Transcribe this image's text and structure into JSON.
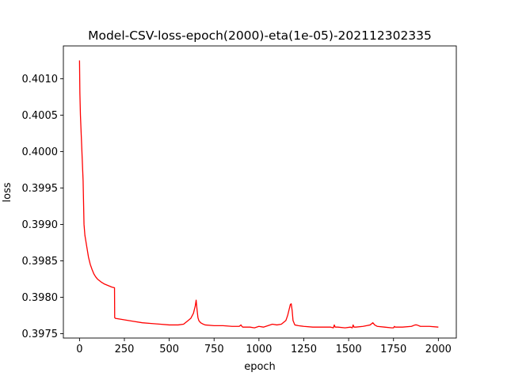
{
  "chart_data": {
    "type": "line",
    "title": "Model-CSV-loss-epoch(2000)-eta(1e-05)-202112302335",
    "xlabel": "epoch",
    "ylabel": "loss",
    "xlim": [
      -90,
      2100
    ],
    "ylim": [
      0.39744,
      0.40145
    ],
    "xticks": [
      0,
      250,
      500,
      750,
      1000,
      1250,
      1500,
      1750,
      2000
    ],
    "xtick_labels": [
      "0",
      "250",
      "500",
      "750",
      "1000",
      "1250",
      "1500",
      "1750",
      "2000"
    ],
    "yticks": [
      0.3975,
      0.398,
      0.3985,
      0.399,
      0.3995,
      0.4,
      0.4005,
      0.401
    ],
    "ytick_labels": [
      "0.3975",
      "0.3980",
      "0.3985",
      "0.3990",
      "0.3995",
      "0.4000",
      "0.4005",
      "0.4010"
    ],
    "grid": false,
    "legend": false,
    "series": [
      {
        "color": "#ff0000",
        "x": [
          0,
          2,
          5,
          10,
          15,
          20,
          25,
          30,
          40,
          50,
          60,
          70,
          80,
          90,
          100,
          120,
          140,
          160,
          180,
          195,
          196,
          200,
          250,
          300,
          350,
          400,
          450,
          500,
          550,
          580,
          600,
          620,
          635,
          645,
          650,
          655,
          660,
          665,
          675,
          690,
          700,
          750,
          800,
          850,
          890,
          900,
          905,
          910,
          920,
          950,
          975,
          1000,
          1025,
          1050,
          1075,
          1100,
          1125,
          1150,
          1160,
          1170,
          1175,
          1180,
          1185,
          1190,
          1200,
          1220,
          1250,
          1300,
          1350,
          1400,
          1415,
          1420,
          1425,
          1440,
          1480,
          1510,
          1520,
          1525,
          1530,
          1540,
          1580,
          1600,
          1620,
          1635,
          1645,
          1660,
          1700,
          1740,
          1750,
          1755,
          1760,
          1800,
          1850,
          1870,
          1880,
          1900,
          1950,
          2000
        ],
        "y": [
          0.40125,
          0.4008,
          0.4005,
          0.4002,
          0.3999,
          0.3996,
          0.399,
          0.39885,
          0.3987,
          0.39855,
          0.39845,
          0.39838,
          0.39832,
          0.39828,
          0.39825,
          0.39821,
          0.39818,
          0.39816,
          0.39814,
          0.39813,
          0.39772,
          0.39771,
          0.39769,
          0.39767,
          0.39765,
          0.39764,
          0.39763,
          0.39762,
          0.39762,
          0.39763,
          0.39767,
          0.39771,
          0.39778,
          0.39788,
          0.39796,
          0.39783,
          0.39772,
          0.39768,
          0.39765,
          0.39763,
          0.39762,
          0.39761,
          0.39761,
          0.3976,
          0.3976,
          0.39762,
          0.3976,
          0.39759,
          0.39759,
          0.39759,
          0.39758,
          0.3976,
          0.39759,
          0.39761,
          0.39763,
          0.39762,
          0.39763,
          0.39768,
          0.39775,
          0.39785,
          0.3979,
          0.39791,
          0.39782,
          0.39768,
          0.39762,
          0.39761,
          0.3976,
          0.39759,
          0.39759,
          0.39759,
          0.39758,
          0.39762,
          0.39759,
          0.39759,
          0.39758,
          0.39759,
          0.39758,
          0.39762,
          0.39759,
          0.39759,
          0.3976,
          0.39761,
          0.39762,
          0.39765,
          0.39762,
          0.3976,
          0.39759,
          0.39758,
          0.39758,
          0.3976,
          0.39759,
          0.39759,
          0.3976,
          0.39762,
          0.39762,
          0.3976,
          0.3976,
          0.39759
        ]
      }
    ]
  }
}
